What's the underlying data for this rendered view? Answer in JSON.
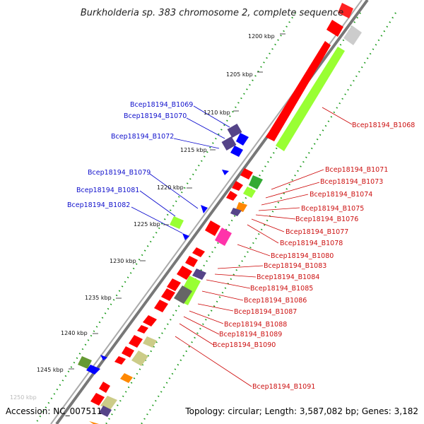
{
  "title": "Burkholderia sp. 383 chromosome 2, complete sequence",
  "footer": {
    "accession": "Accession: NC_007511",
    "topology": "Topology: circular; Length: 3,587,082 bp; Genes: 3,182"
  },
  "ticks": [
    {
      "label": "1200 kbp"
    },
    {
      "label": "1205 kbp"
    },
    {
      "label": "1210 kbp"
    },
    {
      "label": "1215 kbp"
    },
    {
      "label": "1220 kbp"
    },
    {
      "label": "1225 kbp"
    },
    {
      "label": "1230 kbp"
    },
    {
      "label": "1235 kbp"
    },
    {
      "label": "1240 kbp"
    },
    {
      "label": "1245 kbp"
    },
    {
      "label": "1250 kbp"
    }
  ],
  "left_labels": [
    "Bcep18194_B1069",
    "Bcep18194_B1070",
    "Bcep18194_B1072",
    "Bcep18194_B1079",
    "Bcep18194_B1081",
    "Bcep18194_B1082"
  ],
  "right_labels": [
    "Bcep18194_B1068",
    "Bcep18194_B1071",
    "Bcep18194_B1073",
    "Bcep18194_B1074",
    "Bcep18194_B1075",
    "Bcep18194_B1076",
    "Bcep18194_B1077",
    "Bcep18194_B1078",
    "Bcep18194_B1080",
    "Bcep18194_B1083",
    "Bcep18194_B1084",
    "Bcep18194_B1085",
    "Bcep18194_B1086",
    "Bcep18194_B1087",
    "Bcep18194_B1088",
    "Bcep18194_B1089",
    "Bcep18194_B1090",
    "Bcep18194_B1091"
  ],
  "colors": {
    "red": "#ff0000",
    "lime": "#99ff33",
    "blue": "#0000ff",
    "purple": "#554488",
    "olive": "#669933",
    "khaki": "#cccc88",
    "orange": "#ff8800",
    "pink": "#ff33aa",
    "gray_backbone": "#888888",
    "green_dots": "#009900"
  }
}
